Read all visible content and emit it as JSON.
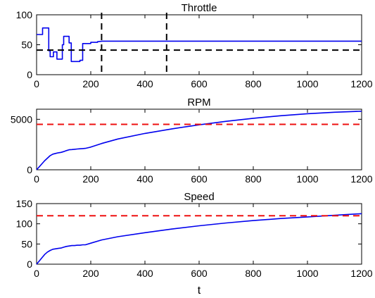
{
  "colors": {
    "series": "#0000ee",
    "threshold": "#ee1111",
    "boundary": "#000000"
  },
  "chart_data": [
    {
      "type": "line",
      "title": "Throttle",
      "xlabel": "",
      "ylabel": "",
      "xlim": [
        0,
        1200
      ],
      "ylim": [
        0,
        100
      ],
      "xticks": [
        0,
        200,
        400,
        600,
        800,
        1000,
        1200
      ],
      "yticks": [
        0,
        50,
        100
      ],
      "series": [
        {
          "style": "solid",
          "x": [
            0,
            22,
            22,
            45,
            45,
            50,
            50,
            62,
            62,
            75,
            75,
            95,
            95,
            100,
            100,
            120,
            120,
            128,
            128,
            160,
            160,
            170,
            170,
            200,
            200,
            225,
            225,
            242,
            1200
          ],
          "y": [
            67,
            67,
            78,
            78,
            40,
            40,
            30,
            30,
            38,
            38,
            26,
            26,
            50,
            50,
            64,
            64,
            53,
            53,
            22,
            22,
            24,
            24,
            52,
            52,
            54,
            54,
            55,
            56,
            56
          ]
        }
      ],
      "hlines": [
        {
          "y": 41,
          "style": "dashed",
          "color": "boundary"
        }
      ],
      "vlines": [
        {
          "x": 240,
          "style": "dashed",
          "color": "boundary"
        },
        {
          "x": 480,
          "style": "dashed",
          "color": "boundary"
        }
      ]
    },
    {
      "type": "line",
      "title": "RPM",
      "xlabel": "",
      "ylabel": "",
      "xlim": [
        0,
        1200
      ],
      "ylim": [
        0,
        6000
      ],
      "xticks": [
        0,
        200,
        400,
        600,
        800,
        1000,
        1200
      ],
      "yticks": [
        0,
        5000
      ],
      "series": [
        {
          "style": "solid",
          "x": [
            0,
            10,
            20,
            30,
            40,
            50,
            60,
            70,
            80,
            90,
            100,
            110,
            120,
            130,
            140,
            150,
            160,
            170,
            180,
            200,
            240,
            300,
            400,
            500,
            600,
            700,
            800,
            900,
            1000,
            1100,
            1200
          ],
          "y": [
            0,
            300,
            600,
            900,
            1150,
            1400,
            1550,
            1620,
            1680,
            1720,
            1800,
            1900,
            1980,
            2000,
            2030,
            2060,
            2080,
            2100,
            2120,
            2250,
            2600,
            3050,
            3600,
            4050,
            4450,
            4800,
            5100,
            5350,
            5550,
            5700,
            5800
          ]
        }
      ],
      "hlines": [
        {
          "y": 4500,
          "style": "dashed",
          "color": "threshold"
        }
      ],
      "vlines": []
    },
    {
      "type": "line",
      "title": "Speed",
      "xlabel": "t",
      "ylabel": "",
      "xlim": [
        0,
        1200
      ],
      "ylim": [
        0,
        150
      ],
      "xticks": [
        0,
        200,
        400,
        600,
        800,
        1000,
        1200
      ],
      "yticks": [
        0,
        50,
        100,
        150
      ],
      "series": [
        {
          "style": "solid",
          "x": [
            0,
            10,
            20,
            30,
            40,
            50,
            60,
            70,
            80,
            90,
            100,
            110,
            120,
            130,
            140,
            150,
            160,
            170,
            180,
            200,
            240,
            300,
            400,
            500,
            600,
            700,
            800,
            900,
            1000,
            1100,
            1200
          ],
          "y": [
            0,
            8,
            16,
            24,
            30,
            34,
            37,
            38,
            39,
            40,
            42,
            44,
            45,
            46,
            46,
            47,
            47,
            48,
            48,
            52,
            60,
            68,
            78,
            87,
            95,
            102,
            108,
            113,
            117,
            121,
            125
          ]
        }
      ],
      "hlines": [
        {
          "y": 120,
          "style": "dashed",
          "color": "threshold"
        }
      ],
      "vlines": []
    }
  ]
}
